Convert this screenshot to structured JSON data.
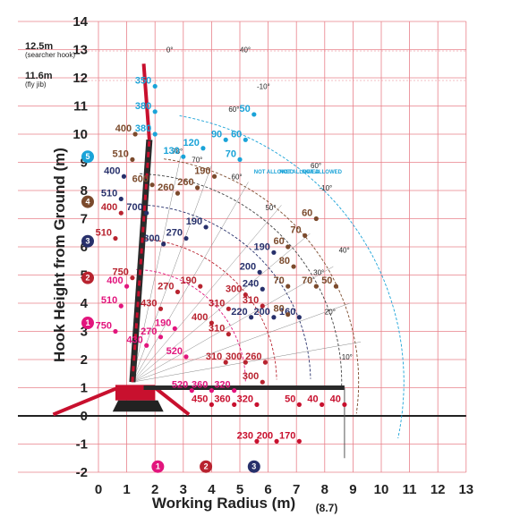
{
  "chart_data": {
    "type": "scatter",
    "title": "",
    "xlabel": "Working Radius (m)",
    "ylabel": "Hook Height from Ground (m)",
    "xlim": [
      0,
      13
    ],
    "ylim": [
      -2,
      14
    ],
    "x_ticks": [
      "0",
      "1",
      "2",
      "3",
      "4",
      "5",
      "6",
      "7",
      "8",
      "9",
      "10",
      "11",
      "12",
      "13"
    ],
    "y_ticks": [
      "-2",
      "-1",
      "0",
      "1",
      "2",
      "3",
      "4",
      "5",
      "6",
      "7",
      "8",
      "9",
      "10",
      "11",
      "12",
      "13",
      "14"
    ],
    "grid": true,
    "extra_x_label": "(8.7)",
    "height_notes": [
      {
        "label": "12.5m",
        "sub": "(searcher hook)"
      },
      {
        "label": "11.6m",
        "sub": "(fly jib)"
      }
    ],
    "colors": {
      "grid": "#e8808a",
      "boom": "#c8102e",
      "c1": "#e2157d",
      "c2": "#b8232f",
      "c3": "#27306b",
      "c4": "#7b4a2c",
      "c5": "#1aa3d8"
    },
    "boom_angles": [
      "78°",
      "70°",
      "60°",
      "50°",
      "40°",
      "30°",
      "20°",
      "10°",
      "-10°",
      "0°",
      "60°",
      "-10°",
      "60°",
      "40°"
    ],
    "not_allowed_text": [
      "NOT ALLOWED",
      "NOT ALLOWED",
      "NOT ALLOWED"
    ],
    "config_badges": [
      "1",
      "2",
      "3",
      "4",
      "5"
    ],
    "series": [
      {
        "name": "1",
        "color": "#e2157d",
        "points": [
          {
            "x": 1.0,
            "y": 4.6,
            "label": "400"
          },
          {
            "x": 0.8,
            "y": 3.9,
            "label": "510"
          },
          {
            "x": 0.6,
            "y": 3.0,
            "label": "750"
          },
          {
            "x": 1.7,
            "y": 2.5,
            "label": "430"
          },
          {
            "x": 2.2,
            "y": 2.8,
            "label": "270"
          },
          {
            "x": 2.7,
            "y": 3.1,
            "label": "190"
          },
          {
            "x": 3.1,
            "y": 2.1,
            "label": "520"
          },
          {
            "x": 3.3,
            "y": 0.9,
            "label": "520"
          },
          {
            "x": 4.0,
            "y": 0.9,
            "label": "360"
          },
          {
            "x": 4.8,
            "y": 0.9,
            "label": "320"
          }
        ]
      },
      {
        "name": "2",
        "color": "#b8232f",
        "points": [
          {
            "x": 0.8,
            "y": 7.2,
            "label": "400"
          },
          {
            "x": 0.6,
            "y": 6.3,
            "label": "510"
          },
          {
            "x": 1.2,
            "y": 4.9,
            "label": "750"
          },
          {
            "x": 2.2,
            "y": 3.8,
            "label": "430"
          },
          {
            "x": 2.8,
            "y": 4.4,
            "label": "270"
          },
          {
            "x": 3.6,
            "y": 4.6,
            "label": "190"
          },
          {
            "x": 4.0,
            "y": 3.3,
            "label": "400"
          },
          {
            "x": 4.6,
            "y": 3.8,
            "label": "310"
          },
          {
            "x": 4.6,
            "y": 2.9,
            "label": "310"
          },
          {
            "x": 4.5,
            "y": 1.9,
            "label": "310"
          },
          {
            "x": 5.2,
            "y": 1.9,
            "label": "300"
          },
          {
            "x": 5.9,
            "y": 1.9,
            "label": "260"
          },
          {
            "x": 5.2,
            "y": 4.3,
            "label": "300"
          },
          {
            "x": 5.8,
            "y": 3.9,
            "label": "310"
          },
          {
            "x": 5.8,
            "y": 1.2,
            "label": "300"
          }
        ]
      },
      {
        "name": "3",
        "color": "#27306b",
        "points": [
          {
            "x": 0.9,
            "y": 8.5,
            "label": "400"
          },
          {
            "x": 0.8,
            "y": 7.7,
            "label": "510"
          },
          {
            "x": 1.7,
            "y": 7.2,
            "label": "700"
          },
          {
            "x": 2.3,
            "y": 6.1,
            "label": "300"
          },
          {
            "x": 3.1,
            "y": 6.3,
            "label": "270"
          },
          {
            "x": 3.8,
            "y": 6.7,
            "label": "190"
          },
          {
            "x": 6.2,
            "y": 5.8,
            "label": "190"
          },
          {
            "x": 5.7,
            "y": 5.1,
            "label": "200"
          },
          {
            "x": 5.8,
            "y": 4.5,
            "label": "240"
          },
          {
            "x": 5.4,
            "y": 3.5,
            "label": "220"
          },
          {
            "x": 6.2,
            "y": 3.5,
            "label": "200"
          },
          {
            "x": 7.1,
            "y": 3.5,
            "label": "160"
          }
        ]
      },
      {
        "name": "4",
        "color": "#7b4a2c",
        "points": [
          {
            "x": 1.3,
            "y": 10.0,
            "label": "400"
          },
          {
            "x": 1.2,
            "y": 9.1,
            "label": "510"
          },
          {
            "x": 1.9,
            "y": 8.2,
            "label": "600"
          },
          {
            "x": 2.8,
            "y": 7.9,
            "label": "260"
          },
          {
            "x": 3.5,
            "y": 8.1,
            "label": "260"
          },
          {
            "x": 4.1,
            "y": 8.5,
            "label": "190"
          },
          {
            "x": 7.7,
            "y": 7.0,
            "label": "60"
          },
          {
            "x": 7.3,
            "y": 6.4,
            "label": "70"
          },
          {
            "x": 6.7,
            "y": 6.0,
            "label": "60"
          },
          {
            "x": 6.9,
            "y": 5.3,
            "label": "80"
          },
          {
            "x": 6.7,
            "y": 4.6,
            "label": "70"
          },
          {
            "x": 6.7,
            "y": 3.6,
            "label": "80"
          },
          {
            "x": 7.7,
            "y": 4.6,
            "label": "70"
          },
          {
            "x": 8.4,
            "y": 4.6,
            "label": "50"
          }
        ]
      },
      {
        "name": "5",
        "color": "#1aa3d8",
        "points": [
          {
            "x": 2.0,
            "y": 11.7,
            "label": "350"
          },
          {
            "x": 2.0,
            "y": 10.8,
            "label": "380"
          },
          {
            "x": 2.0,
            "y": 10.0,
            "label": "380"
          },
          {
            "x": 3.7,
            "y": 9.5,
            "label": "120"
          },
          {
            "x": 3.0,
            "y": 9.2,
            "label": "130"
          },
          {
            "x": 4.5,
            "y": 9.8,
            "label": "90"
          },
          {
            "x": 5.5,
            "y": 10.7,
            "label": "50"
          },
          {
            "x": 5.2,
            "y": 9.8,
            "label": "60"
          },
          {
            "x": 5.0,
            "y": 9.1,
            "label": "70"
          }
        ]
      },
      {
        "name": "ground",
        "color": "#c8102e",
        "points": [
          {
            "x": 4.0,
            "y": 0.4,
            "label": "450"
          },
          {
            "x": 4.8,
            "y": 0.4,
            "label": "360"
          },
          {
            "x": 5.6,
            "y": 0.4,
            "label": "320"
          },
          {
            "x": 5.6,
            "y": -0.9,
            "label": "230"
          },
          {
            "x": 6.3,
            "y": -0.9,
            "label": "200"
          },
          {
            "x": 7.1,
            "y": -0.9,
            "label": "170"
          },
          {
            "x": 7.1,
            "y": 0.4,
            "label": "50"
          },
          {
            "x": 7.9,
            "y": 0.4,
            "label": "40"
          },
          {
            "x": 8.7,
            "y": 0.4,
            "label": "40"
          }
        ]
      }
    ]
  }
}
